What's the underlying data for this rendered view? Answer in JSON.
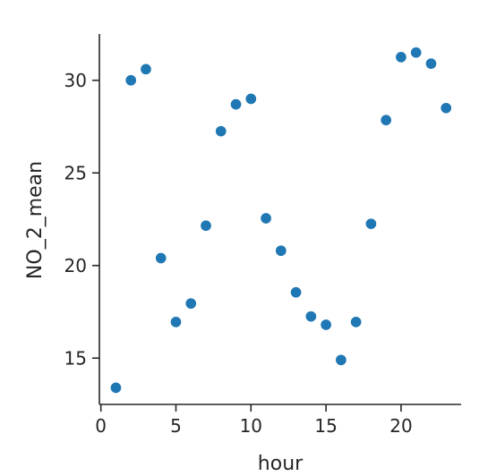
{
  "chart_data": {
    "type": "scatter",
    "title": "",
    "xlabel": "hour",
    "ylabel": "NO_2_mean",
    "xlim": [
      -0.1,
      24
    ],
    "ylim": [
      12.5,
      32.5
    ],
    "xticks": [
      0,
      5,
      10,
      15,
      20
    ],
    "yticks": [
      15,
      20,
      25,
      30
    ],
    "xtick_labels": [
      "0",
      "5",
      "10",
      "15",
      "20"
    ],
    "ytick_labels": [
      "15",
      "20",
      "25",
      "30"
    ],
    "grid": false,
    "legend": "none",
    "color": "#1f77b4",
    "series": [
      {
        "x": [
          1,
          2,
          3,
          4,
          5,
          6,
          7,
          8,
          9,
          10,
          11,
          12,
          13,
          14,
          15,
          16,
          17,
          18,
          19,
          20,
          21,
          22,
          23
        ],
        "y": [
          13.4,
          30.0,
          30.6,
          20.4,
          16.95,
          17.95,
          22.15,
          27.25,
          28.7,
          29.0,
          22.55,
          20.8,
          18.55,
          17.25,
          16.8,
          14.9,
          16.95,
          22.25,
          27.85,
          31.25,
          31.5,
          30.9,
          28.5
        ]
      }
    ]
  }
}
